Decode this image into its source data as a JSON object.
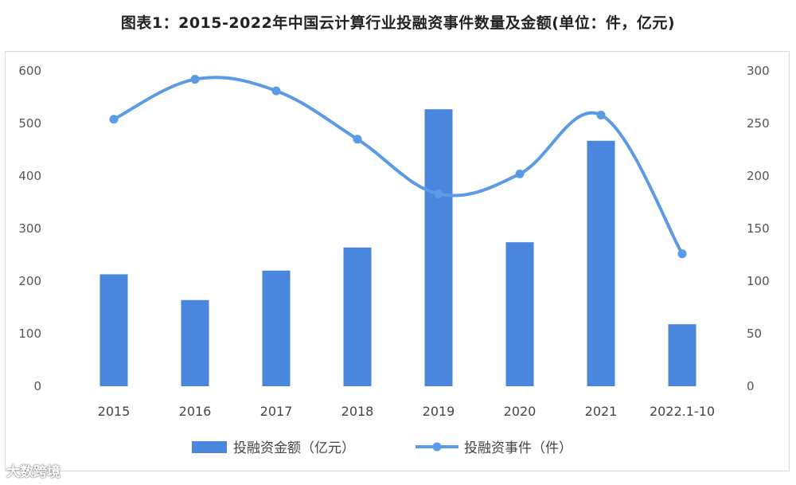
{
  "title": "图表1：2015-2022年中国云计算行业投融资事件数量及金额(单位：件，亿元)",
  "footer": "大数跨境",
  "chart_data": {
    "type": "bar+line",
    "categories": [
      "2015",
      "2016",
      "2017",
      "2018",
      "2019",
      "2020",
      "2021",
      "2022.1-10"
    ],
    "series": [
      {
        "name": "投融资金额（亿元）",
        "type": "bar",
        "axis": "left",
        "values": [
          213,
          164,
          220,
          264,
          527,
          274,
          467,
          118
        ],
        "color": "#4a86de"
      },
      {
        "name": "投融资事件（件）",
        "type": "line",
        "axis": "right",
        "values": [
          254,
          292,
          281,
          235,
          183,
          202,
          258,
          126
        ],
        "color": "#5b9be6"
      }
    ],
    "y_left": {
      "min": 0,
      "max": 600,
      "ticks": [
        0,
        100,
        200,
        300,
        400,
        500,
        600
      ]
    },
    "y_right": {
      "min": 0,
      "max": 300,
      "ticks": [
        0,
        50,
        100,
        150,
        200,
        250,
        300
      ]
    },
    "legend_position": "bottom",
    "grid": false
  }
}
